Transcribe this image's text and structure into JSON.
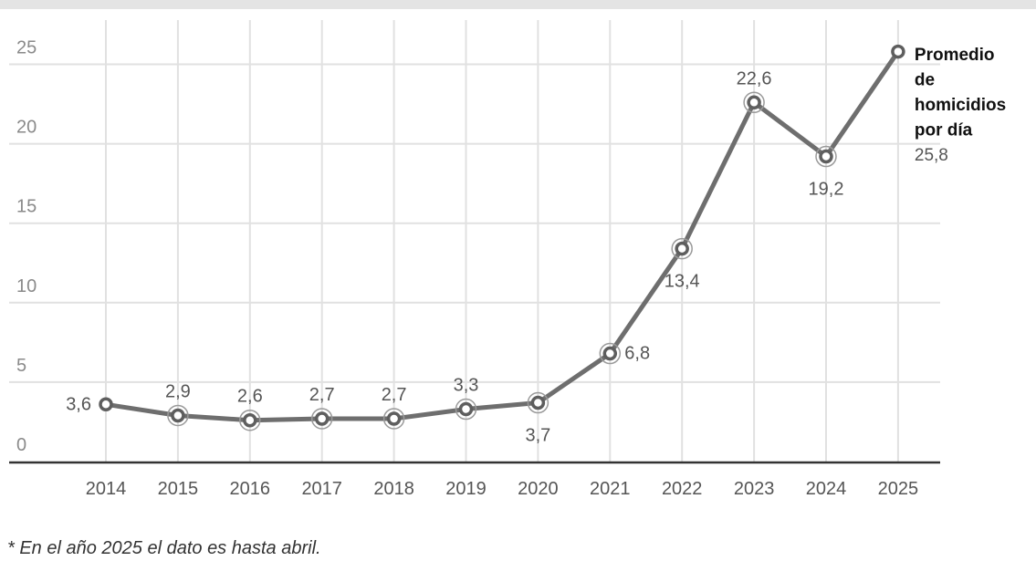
{
  "chart_data": {
    "type": "line",
    "x": [
      "2014",
      "2015",
      "2016",
      "2017",
      "2018",
      "2019",
      "2020",
      "2021",
      "2022",
      "2023",
      "2024",
      "2025"
    ],
    "series": [
      {
        "name": "Promedio de homicidios por día",
        "values": [
          3.6,
          2.9,
          2.6,
          2.7,
          2.7,
          3.3,
          3.7,
          6.8,
          13.4,
          22.6,
          19.2,
          25.8
        ],
        "labels": [
          "3,6",
          "2,9",
          "2,6",
          "2,7",
          "2,7",
          "3,3",
          "3,7",
          "6,8",
          "13,4",
          "22,6",
          "19,2",
          "25,8"
        ]
      }
    ],
    "series_title_lines": [
      "Promedio",
      "de",
      "homicidios",
      "por día"
    ],
    "series_last_value": "25,8",
    "yticks": [
      "0",
      "5",
      "10",
      "15",
      "20",
      "25"
    ],
    "ylim": [
      0,
      27
    ],
    "grid": true,
    "legend": "end-of-line label",
    "colors": {
      "line": "#6e6e6e",
      "grid": "#e1e1e1",
      "axis": "#333333"
    }
  },
  "footnote": "* En el año 2025 el dato es hasta abril."
}
